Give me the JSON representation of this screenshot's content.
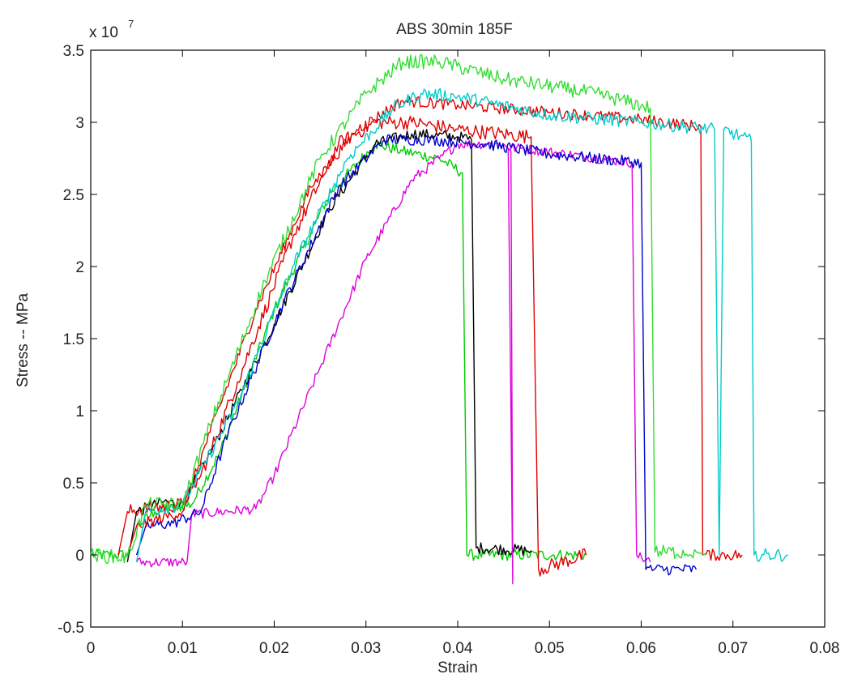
{
  "chart_data": {
    "type": "line",
    "title": "ABS 30min 185F",
    "xlabel": "Strain",
    "ylabel": "Stress -- MPa",
    "y_exponent_prefix": "x 10",
    "y_exponent_power": "7",
    "xlim": [
      0,
      0.08
    ],
    "ylim": [
      -0.5,
      3.5
    ],
    "y_scale_factor": 10000000,
    "grid": false,
    "x_ticks": [
      0,
      0.01,
      0.02,
      0.03,
      0.04,
      0.05,
      0.06,
      0.07,
      0.08
    ],
    "x_tick_labels": [
      "0",
      "0.01",
      "0.02",
      "0.03",
      "0.04",
      "0.05",
      "0.06",
      "0.07",
      "0.08"
    ],
    "y_ticks": [
      -0.5,
      0,
      0.5,
      1,
      1.5,
      2,
      2.5,
      3,
      3.5
    ],
    "y_tick_labels": [
      "-0.5",
      "0",
      "0.5",
      "1",
      "1.5",
      "2",
      "2.5",
      "3",
      "3.5"
    ],
    "series": [
      {
        "color": "#00cc00",
        "noise": 0.04,
        "points": [
          [
            0,
            0.0
          ],
          [
            0.004,
            0.0
          ],
          [
            0.005,
            0.2
          ],
          [
            0.007,
            0.3
          ],
          [
            0.011,
            0.35
          ],
          [
            0.014,
            0.7
          ],
          [
            0.02,
            1.7
          ],
          [
            0.026,
            2.5
          ],
          [
            0.031,
            2.85
          ],
          [
            0.034,
            2.8
          ],
          [
            0.038,
            2.75
          ],
          [
            0.0405,
            2.65
          ],
          [
            0.041,
            0.0
          ],
          [
            0.054,
            0.0
          ]
        ]
      },
      {
        "color": "#000000",
        "noise": 0.04,
        "points": [
          [
            0.004,
            -0.05
          ],
          [
            0.005,
            0.3
          ],
          [
            0.008,
            0.37
          ],
          [
            0.01,
            0.35
          ],
          [
            0.013,
            0.7
          ],
          [
            0.02,
            1.6
          ],
          [
            0.026,
            2.4
          ],
          [
            0.031,
            2.85
          ],
          [
            0.035,
            2.92
          ],
          [
            0.04,
            2.9
          ],
          [
            0.0415,
            2.88
          ],
          [
            0.042,
            0.05
          ],
          [
            0.048,
            0.03
          ]
        ]
      },
      {
        "color": "#dd00dd",
        "noise": 0.035,
        "points": [
          [
            0.005,
            -0.05
          ],
          [
            0.0105,
            -0.05
          ],
          [
            0.011,
            0.28
          ],
          [
            0.018,
            0.32
          ],
          [
            0.02,
            0.55
          ],
          [
            0.025,
            1.3
          ],
          [
            0.03,
            2.05
          ],
          [
            0.035,
            2.6
          ],
          [
            0.038,
            2.75
          ],
          [
            0.04,
            2.85
          ],
          [
            0.045,
            2.85
          ],
          [
            0.0458,
            2.8
          ],
          [
            0.046,
            -0.2
          ],
          [
            0.0455,
            2.82
          ],
          [
            0.047,
            2.82
          ],
          [
            0.059,
            2.72
          ],
          [
            0.0595,
            0.0
          ],
          [
            0.061,
            -0.05
          ]
        ]
      },
      {
        "color": "#e00000",
        "noise": 0.05,
        "points": [
          [
            0.003,
            0.0
          ],
          [
            0.004,
            0.3
          ],
          [
            0.007,
            0.33
          ],
          [
            0.01,
            0.35
          ],
          [
            0.012,
            0.55
          ],
          [
            0.016,
            1.2
          ],
          [
            0.022,
            2.2
          ],
          [
            0.027,
            2.85
          ],
          [
            0.031,
            3.0
          ],
          [
            0.035,
            3.0
          ],
          [
            0.04,
            2.95
          ],
          [
            0.048,
            2.9
          ],
          [
            0.0488,
            -0.1
          ],
          [
            0.054,
            0.0
          ]
        ]
      },
      {
        "color": "#0000cc",
        "noise": 0.04,
        "points": [
          [
            0.005,
            0.0
          ],
          [
            0.006,
            0.2
          ],
          [
            0.009,
            0.22
          ],
          [
            0.012,
            0.3
          ],
          [
            0.015,
            0.85
          ],
          [
            0.021,
            1.75
          ],
          [
            0.027,
            2.55
          ],
          [
            0.032,
            2.88
          ],
          [
            0.037,
            2.88
          ],
          [
            0.043,
            2.85
          ],
          [
            0.05,
            2.78
          ],
          [
            0.06,
            2.72
          ],
          [
            0.0605,
            -0.1
          ],
          [
            0.066,
            -0.1
          ]
        ]
      },
      {
        "color": "#e00000",
        "noise": 0.04,
        "points": [
          [
            0.004,
            0.0
          ],
          [
            0.005,
            0.2
          ],
          [
            0.01,
            0.3
          ],
          [
            0.013,
            0.85
          ],
          [
            0.018,
            1.7
          ],
          [
            0.024,
            2.55
          ],
          [
            0.029,
            2.95
          ],
          [
            0.034,
            3.15
          ],
          [
            0.04,
            3.12
          ],
          [
            0.05,
            3.07
          ],
          [
            0.06,
            3.02
          ],
          [
            0.0665,
            2.97
          ],
          [
            0.0667,
            0.0
          ],
          [
            0.071,
            0.0
          ]
        ]
      },
      {
        "color": "#00cccc",
        "noise": 0.045,
        "points": [
          [
            0.005,
            -0.05
          ],
          [
            0.006,
            0.3
          ],
          [
            0.01,
            0.35
          ],
          [
            0.016,
            1.05
          ],
          [
            0.022,
            2.0
          ],
          [
            0.028,
            2.75
          ],
          [
            0.033,
            3.1
          ],
          [
            0.036,
            3.2
          ],
          [
            0.04,
            3.18
          ],
          [
            0.05,
            3.05
          ],
          [
            0.06,
            3.0
          ],
          [
            0.068,
            2.95
          ],
          [
            0.0685,
            0.0
          ],
          [
            0.069,
            2.95
          ],
          [
            0.072,
            2.87
          ],
          [
            0.0723,
            0.0
          ],
          [
            0.076,
            0.0
          ]
        ]
      },
      {
        "color": "#33dd33",
        "noise": 0.05,
        "points": [
          [
            0.0,
            0.0
          ],
          [
            0.004,
            -0.02
          ],
          [
            0.006,
            0.35
          ],
          [
            0.01,
            0.35
          ],
          [
            0.013,
            0.9
          ],
          [
            0.019,
            1.9
          ],
          [
            0.025,
            2.75
          ],
          [
            0.03,
            3.2
          ],
          [
            0.034,
            3.42
          ],
          [
            0.038,
            3.42
          ],
          [
            0.045,
            3.3
          ],
          [
            0.055,
            3.2
          ],
          [
            0.061,
            3.1
          ],
          [
            0.0615,
            0.02
          ],
          [
            0.066,
            0.02
          ],
          [
            0.067,
            0.0
          ]
        ]
      }
    ]
  }
}
